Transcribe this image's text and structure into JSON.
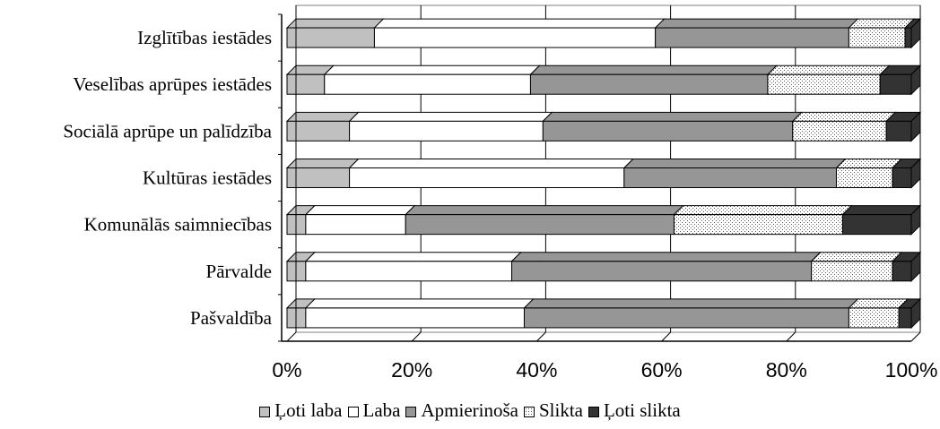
{
  "chart_data": {
    "type": "bar",
    "orientation": "horizontal",
    "stacked": true,
    "percent_stacked": true,
    "categories": [
      "Izglītības iestādes",
      "Veselības aprūpes iestādes",
      "Sociālā aprūpe un palīdzība",
      "Kultūras iestādes",
      "Komunālās saimniecības",
      "Pārvalde",
      "Pašvaldība"
    ],
    "series": [
      {
        "name": "Ļoti laba",
        "color": "#c0c0c0",
        "pattern": "solid",
        "values": [
          14,
          6,
          10,
          10,
          3,
          3,
          3
        ]
      },
      {
        "name": "Laba",
        "color": "#ffffff",
        "pattern": "solid",
        "values": [
          45,
          33,
          31,
          44,
          16,
          33,
          35
        ]
      },
      {
        "name": "Apmierinoša",
        "color": "#969696",
        "pattern": "solid",
        "values": [
          31,
          38,
          40,
          34,
          43,
          48,
          52
        ]
      },
      {
        "name": "Slikta",
        "color": "#ffffff",
        "pattern": "dotted",
        "values": [
          9,
          18,
          15,
          9,
          27,
          13,
          8
        ]
      },
      {
        "name": "Ļoti slikta",
        "color": "#333333",
        "pattern": "solid",
        "values": [
          1,
          5,
          4,
          3,
          11,
          3,
          2
        ]
      }
    ],
    "x_ticks": [
      "0%",
      "20%",
      "40%",
      "60%",
      "80%",
      "100%"
    ],
    "xlim": [
      0,
      100
    ],
    "grid": true,
    "legend_position": "bottom"
  }
}
